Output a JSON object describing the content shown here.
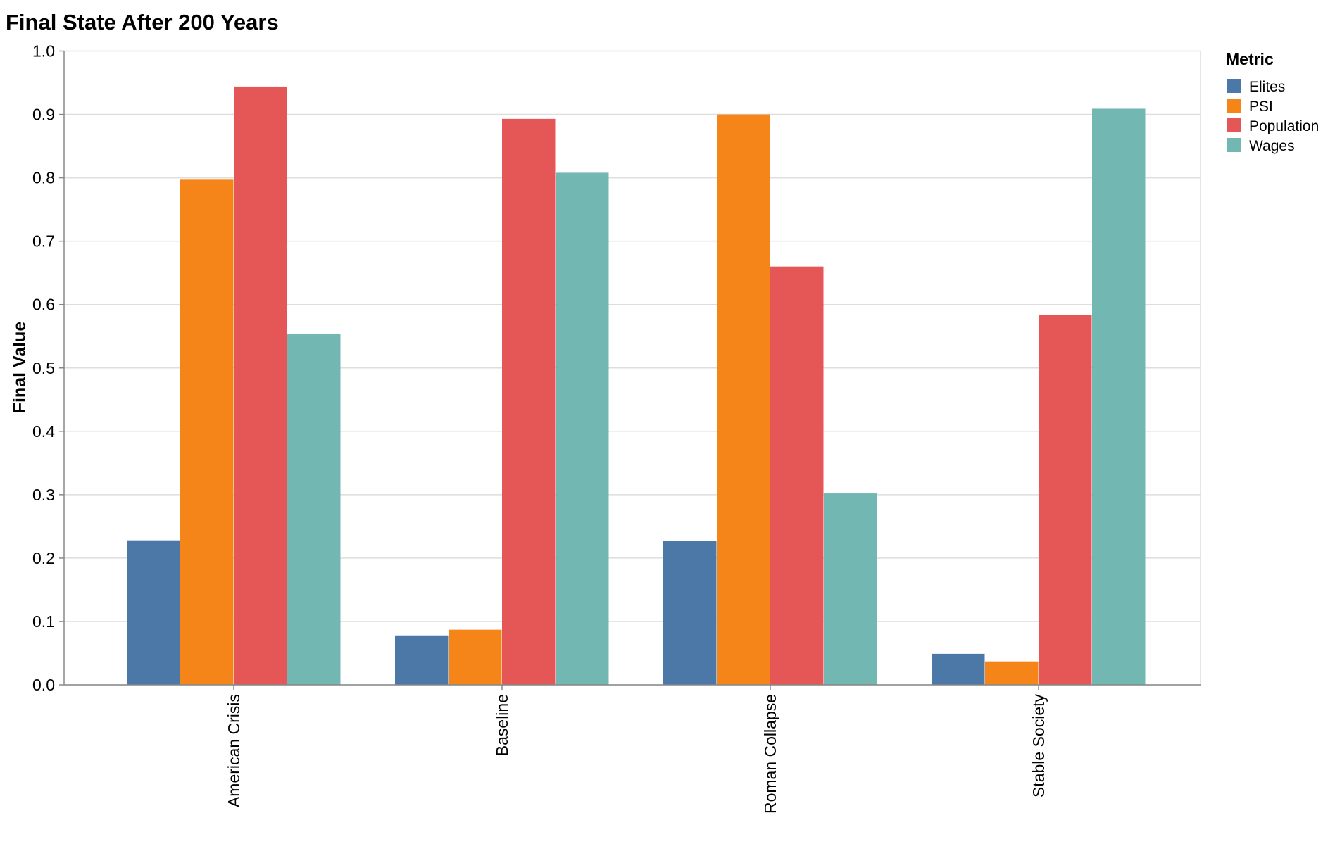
{
  "chart_data": {
    "type": "bar",
    "title": "Final State After 200 Years",
    "xlabel": "",
    "ylabel": "Final Value",
    "ylim": [
      0,
      1.0
    ],
    "yticks": [
      "0.0",
      "0.1",
      "0.2",
      "0.3",
      "0.4",
      "0.5",
      "0.6",
      "0.7",
      "0.8",
      "0.9",
      "1.0"
    ],
    "grid": true,
    "legend": {
      "title": "Metric",
      "placement": "right"
    },
    "categories": [
      "American Crisis",
      "Baseline",
      "Roman Collapse",
      "Stable Society"
    ],
    "series": [
      {
        "name": "Elites",
        "color": "#4c78a8",
        "values": [
          0.228,
          0.078,
          0.227,
          0.049
        ]
      },
      {
        "name": "PSI",
        "color": "#f58518",
        "values": [
          0.797,
          0.087,
          0.9,
          0.037
        ]
      },
      {
        "name": "Population",
        "color": "#e45756",
        "values": [
          0.944,
          0.893,
          0.66,
          0.584
        ]
      },
      {
        "name": "Wages",
        "color": "#72b7b2",
        "values": [
          0.553,
          0.808,
          0.302,
          0.909
        ]
      }
    ]
  }
}
